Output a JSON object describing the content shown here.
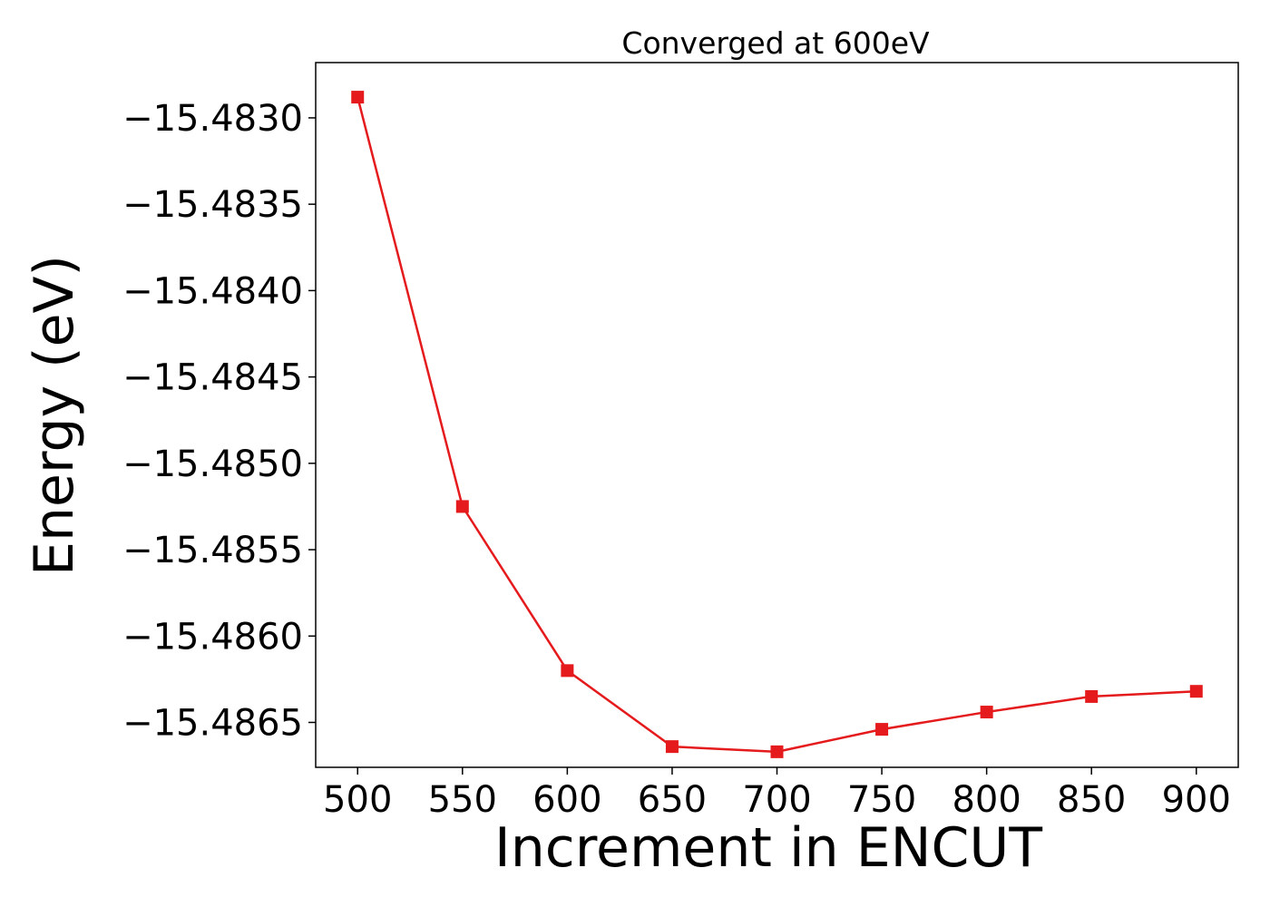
{
  "chart_data": {
    "type": "line",
    "title": "Converged at 600eV",
    "xlabel": "Increment in ENCUT",
    "ylabel": "Energy (eV)",
    "x": [
      500,
      550,
      600,
      650,
      700,
      750,
      800,
      850,
      900
    ],
    "series": [
      {
        "values": [
          -15.48288,
          -15.48525,
          -15.4862,
          -15.48664,
          -15.48667,
          -15.48654,
          -15.48644,
          -15.48635,
          -15.48632
        ],
        "color": "#e41a1c",
        "marker": "square"
      }
    ],
    "xlim": [
      480,
      920
    ],
    "ylim": [
      -15.48676,
      -15.48268
    ],
    "xticks": [
      500,
      550,
      600,
      650,
      700,
      750,
      800,
      850,
      900
    ],
    "xtick_labels": [
      "500",
      "550",
      "600",
      "650",
      "700",
      "750",
      "800",
      "850",
      "900"
    ],
    "yticks": [
      -15.483,
      -15.4835,
      -15.484,
      -15.4845,
      -15.485,
      -15.4855,
      -15.486,
      -15.4865
    ],
    "ytick_labels": [
      "−15.4830",
      "−15.4835",
      "−15.4840",
      "−15.4845",
      "−15.4850",
      "−15.4855",
      "−15.4860",
      "−15.4865"
    ],
    "grid": false,
    "legend": "none"
  }
}
